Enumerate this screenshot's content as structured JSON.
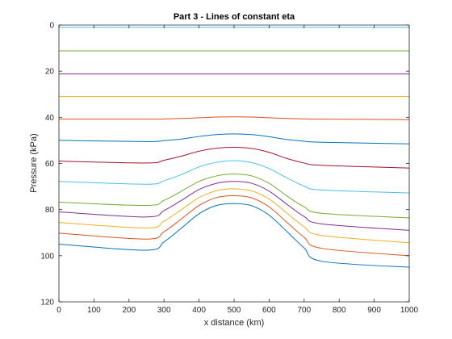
{
  "chart_data": {
    "type": "line",
    "title": "Part 3 - Lines of constant eta",
    "xlabel": "x distance (km)",
    "ylabel": "Pressure (kPa)",
    "xlim": [
      0,
      1000
    ],
    "ylim": [
      0,
      120
    ],
    "y_reversed": true,
    "xticks": [
      "0",
      "100",
      "200",
      "300",
      "400",
      "500",
      "600",
      "700",
      "800",
      "900",
      "1000"
    ],
    "yticks": [
      "0",
      "20",
      "40",
      "60",
      "80",
      "100",
      "120"
    ],
    "grid": false,
    "legend": "none",
    "series": [
      {
        "color": "#4DBEEE",
        "points": [
          [
            0,
            1.0
          ],
          [
            1000,
            1.0
          ]
        ]
      },
      {
        "color": "#77AC30",
        "points": [
          [
            0,
            11.2
          ],
          [
            1000,
            11.2
          ]
        ]
      },
      {
        "color": "#7E2F8E",
        "points": [
          [
            0,
            21.2
          ],
          [
            1000,
            21.2
          ]
        ]
      },
      {
        "color": "#EDB120",
        "points": [
          [
            0,
            31.0
          ],
          [
            1000,
            31.0
          ]
        ]
      },
      {
        "color": "#D95319",
        "points": [
          [
            0,
            40.8
          ],
          [
            250,
            40.8
          ],
          [
            300,
            40.7
          ],
          [
            350,
            40.5
          ],
          [
            400,
            40.2
          ],
          [
            450,
            39.9
          ],
          [
            500,
            39.8
          ],
          [
            550,
            39.9
          ],
          [
            600,
            40.2
          ],
          [
            650,
            40.5
          ],
          [
            700,
            40.7
          ],
          [
            750,
            40.8
          ],
          [
            1000,
            41.0
          ]
        ]
      },
      {
        "color": "#0072BD",
        "points": [
          [
            0,
            50.0
          ],
          [
            250,
            50.5
          ],
          [
            300,
            50.1
          ],
          [
            350,
            49.4
          ],
          [
            400,
            48.3
          ],
          [
            450,
            47.5
          ],
          [
            500,
            47.2
          ],
          [
            550,
            47.5
          ],
          [
            600,
            48.4
          ],
          [
            650,
            49.6
          ],
          [
            700,
            50.4
          ],
          [
            750,
            50.8
          ],
          [
            1000,
            51.5
          ]
        ]
      },
      {
        "color": "#A2142F",
        "points": [
          [
            0,
            59.0
          ],
          [
            250,
            59.8
          ],
          [
            300,
            58.6
          ],
          [
            350,
            56.8
          ],
          [
            400,
            54.7
          ],
          [
            450,
            53.4
          ],
          [
            500,
            53.0
          ],
          [
            550,
            53.5
          ],
          [
            600,
            55.2
          ],
          [
            650,
            57.8
          ],
          [
            700,
            59.8
          ],
          [
            750,
            60.8
          ],
          [
            1000,
            62.0
          ]
        ]
      },
      {
        "color": "#4DBEEE",
        "points": [
          [
            0,
            67.8
          ],
          [
            250,
            69.0
          ],
          [
            300,
            67.5
          ],
          [
            350,
            64.8
          ],
          [
            400,
            61.5
          ],
          [
            450,
            59.5
          ],
          [
            500,
            58.8
          ],
          [
            550,
            59.6
          ],
          [
            600,
            62.2
          ],
          [
            650,
            66.2
          ],
          [
            700,
            69.8
          ],
          [
            750,
            71.5
          ],
          [
            1000,
            72.8
          ]
        ]
      },
      {
        "color": "#77AC30",
        "points": [
          [
            0,
            76.8
          ],
          [
            250,
            78.2
          ],
          [
            300,
            76.0
          ],
          [
            350,
            72.0
          ],
          [
            400,
            67.8
          ],
          [
            450,
            65.4
          ],
          [
            500,
            64.6
          ],
          [
            550,
            65.4
          ],
          [
            600,
            68.6
          ],
          [
            650,
            74.0
          ],
          [
            700,
            78.8
          ],
          [
            750,
            81.6
          ],
          [
            1000,
            83.6
          ]
        ]
      },
      {
        "color": "#7E2F8E",
        "points": [
          [
            0,
            81.0
          ],
          [
            250,
            83.2
          ],
          [
            300,
            80.4
          ],
          [
            350,
            76.0
          ],
          [
            400,
            71.3
          ],
          [
            450,
            68.6
          ],
          [
            500,
            67.8
          ],
          [
            550,
            68.6
          ],
          [
            600,
            72.0
          ],
          [
            650,
            77.6
          ],
          [
            700,
            83.0
          ],
          [
            750,
            86.2
          ],
          [
            1000,
            89.0
          ]
        ]
      },
      {
        "color": "#EDB120",
        "points": [
          [
            0,
            85.6
          ],
          [
            250,
            88.0
          ],
          [
            300,
            85.0
          ],
          [
            350,
            80.0
          ],
          [
            400,
            74.8
          ],
          [
            450,
            71.8
          ],
          [
            500,
            71.0
          ],
          [
            550,
            71.9
          ],
          [
            600,
            75.4
          ],
          [
            650,
            81.4
          ],
          [
            700,
            87.4
          ],
          [
            750,
            91.2
          ],
          [
            1000,
            94.4
          ]
        ]
      },
      {
        "color": "#D95319",
        "points": [
          [
            0,
            90.2
          ],
          [
            250,
            92.8
          ],
          [
            300,
            89.6
          ],
          [
            350,
            84.0
          ],
          [
            400,
            78.2
          ],
          [
            450,
            74.8
          ],
          [
            500,
            74.0
          ],
          [
            550,
            74.9
          ],
          [
            600,
            78.8
          ],
          [
            650,
            85.4
          ],
          [
            700,
            92.0
          ],
          [
            750,
            96.8
          ],
          [
            1000,
            100.0
          ]
        ]
      },
      {
        "color": "#0072BD",
        "points": [
          [
            0,
            95.0
          ],
          [
            250,
            97.6
          ],
          [
            300,
            94.0
          ],
          [
            350,
            88.0
          ],
          [
            400,
            81.8
          ],
          [
            450,
            78.2
          ],
          [
            500,
            77.4
          ],
          [
            550,
            78.3
          ],
          [
            600,
            82.4
          ],
          [
            650,
            89.4
          ],
          [
            700,
            96.6
          ],
          [
            750,
            102.4
          ],
          [
            1000,
            105.0
          ]
        ]
      }
    ]
  }
}
